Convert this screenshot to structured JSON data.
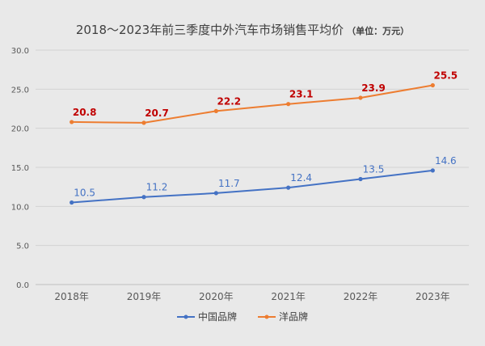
{
  "title": "2018～2023年前三季度中外汽车市场销售平均价",
  "title_unit": "（单位：万元）",
  "colors": {
    "china": "#4472c4",
    "foreign": "#ed7d31",
    "foreign_label": "#c00000",
    "axis_text": "#595959"
  },
  "chart_data": {
    "type": "line",
    "categories": [
      "2018年",
      "2019年",
      "2020年",
      "2021年",
      "2022年",
      "2023年"
    ],
    "series": [
      {
        "name": "中国品牌",
        "values": [
          10.5,
          11.2,
          11.7,
          12.4,
          13.5,
          14.6
        ],
        "value_labels": [
          "10.5",
          "11.2",
          "11.7",
          "12.4",
          "13.5",
          "14.6"
        ]
      },
      {
        "name": "洋品牌",
        "values": [
          20.8,
          20.7,
          22.2,
          23.1,
          23.9,
          25.5
        ],
        "value_labels": [
          "20.8",
          "20.7",
          "22.2",
          "23.1",
          "23.9",
          "25.5"
        ]
      }
    ],
    "ylim": [
      0,
      30
    ],
    "yticks": [
      "0.0",
      "5.0",
      "10.0",
      "15.0",
      "20.0",
      "25.0",
      "30.0"
    ],
    "grid": true,
    "legend": "bottom"
  }
}
